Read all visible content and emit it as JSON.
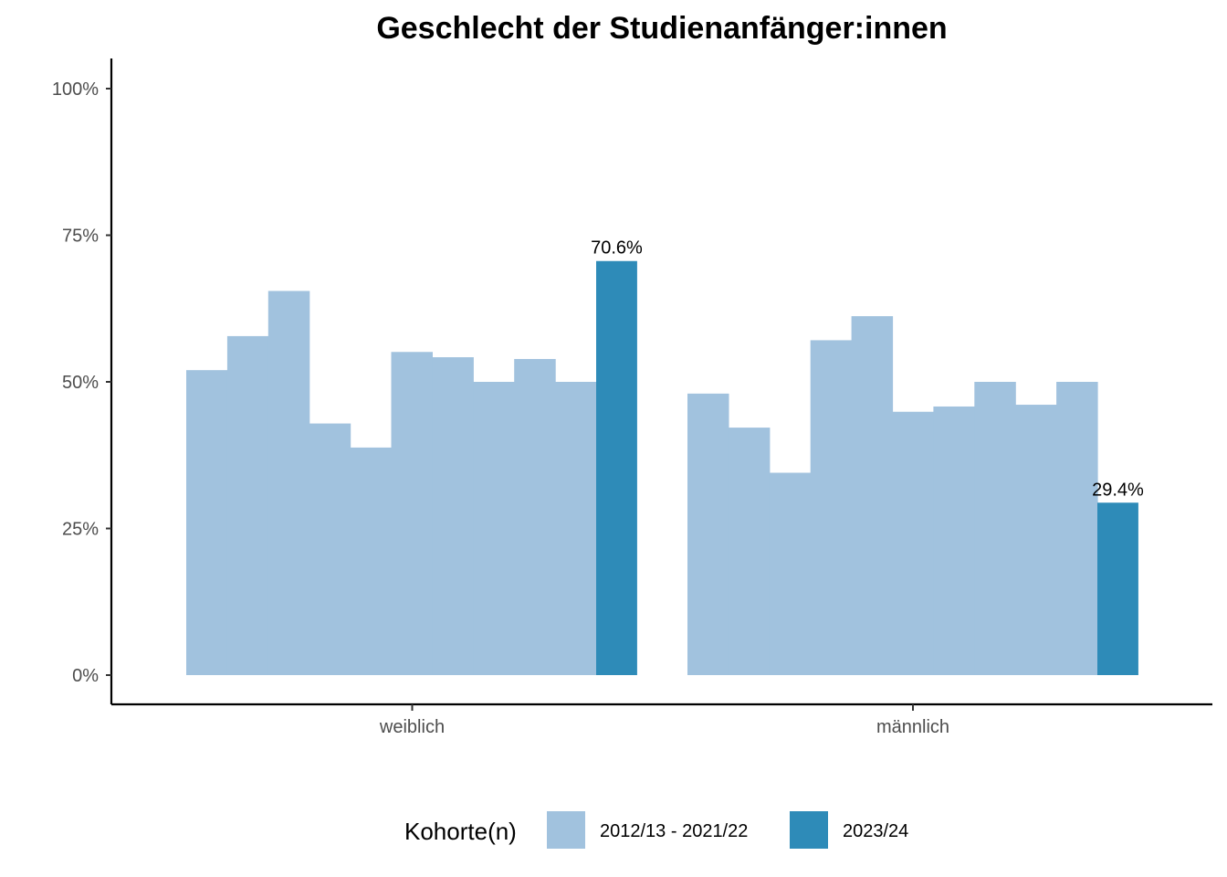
{
  "chart_data": {
    "type": "bar",
    "title": "Geschlecht der Studienanfänger:innen",
    "xlabel": "",
    "ylabel": "",
    "ylim": [
      0,
      1.05
    ],
    "y_ticks": [
      {
        "value": 0,
        "label": "0%"
      },
      {
        "value": 0.25,
        "label": "25%"
      },
      {
        "value": 0.5,
        "label": "50%"
      },
      {
        "value": 0.75,
        "label": "75%"
      },
      {
        "value": 1.0,
        "label": "100%"
      }
    ],
    "categories": [
      "weiblich",
      "männlich"
    ],
    "colors": {
      "past": "#a1c2de",
      "current": "#2e8bb8",
      "axis": "#000000"
    },
    "past_cohorts": {
      "name": "2012/13 - 2021/22",
      "values_by_category": [
        [
          0.52,
          0.578,
          0.655,
          0.429,
          0.388,
          0.551,
          0.542,
          0.5,
          0.539,
          0.5
        ],
        [
          0.48,
          0.422,
          0.345,
          0.571,
          0.612,
          0.449,
          0.458,
          0.5,
          0.461,
          0.5
        ]
      ]
    },
    "current_cohort": {
      "name": "2023/24",
      "values": [
        0.706,
        0.294
      ],
      "labels": [
        "70.6%",
        "29.4%"
      ]
    },
    "legend": {
      "title": "Kohorte(n)",
      "position": "bottom",
      "items": [
        "2012/13 - 2021/22",
        "2023/24"
      ]
    }
  }
}
